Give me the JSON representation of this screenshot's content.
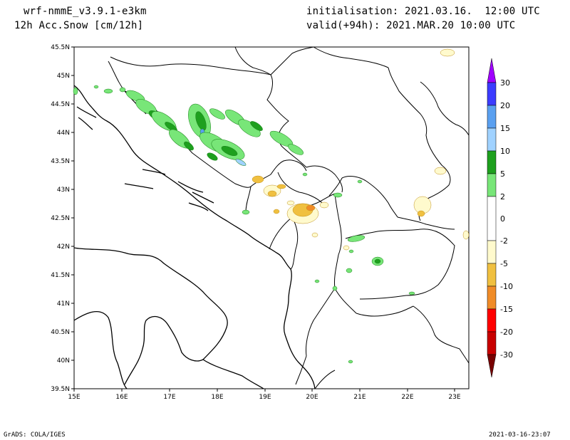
{
  "header": {
    "model": "wrf-nmmE_v3.9.1-e3km",
    "field": "12h Acc.Snow [cm/12h]",
    "init": "initialisation: 2021.03.16.  12:00 UTC",
    "valid": "valid(+94h): 2021.MAR.20 10:00 UTC"
  },
  "map": {
    "lat_labels": [
      "45.5N",
      "45N",
      "44.5N",
      "44N",
      "43.5N",
      "43N",
      "42.5N",
      "42N",
      "41.5N",
      "41N",
      "40.5N",
      "40N",
      "39.5N"
    ],
    "lon_labels": [
      "15E",
      "16E",
      "17E",
      "18E",
      "19E",
      "20E",
      "21E",
      "22E",
      "23E"
    ],
    "lat_range": [
      39.5,
      45.5
    ],
    "lon_range": [
      15,
      23.3
    ]
  },
  "colorbar": {
    "labels": [
      "30",
      "20",
      "15",
      "10",
      "5",
      "2",
      "0",
      "-2",
      "-5",
      "-10",
      "-15",
      "-20",
      "-30"
    ],
    "colors": [
      "#a000ff",
      "#3c3cff",
      "#5aa0f0",
      "#a0d2ff",
      "#1ea01e",
      "#78e678",
      "#ffffff",
      "#fffacd",
      "#f0c040",
      "#f08c28",
      "#ff0000",
      "#c80000",
      "#780000"
    ]
  },
  "footer": {
    "left": "GrADS: COLA/IGES",
    "right": "2021-03-16-23:07"
  }
}
